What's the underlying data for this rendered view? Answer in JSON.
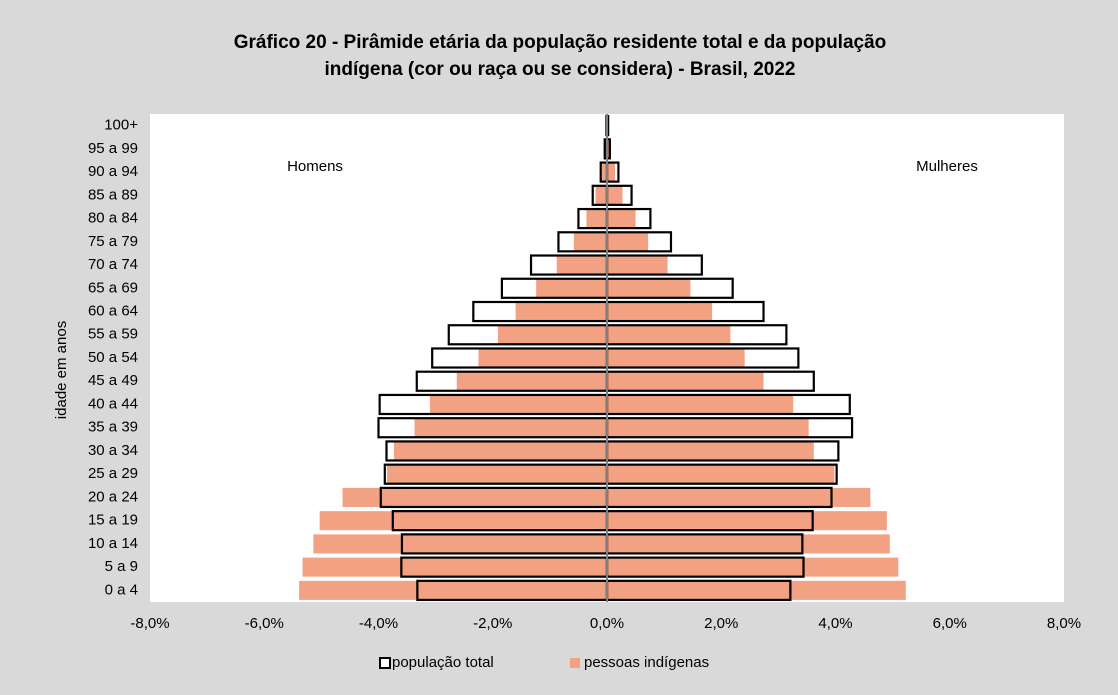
{
  "chart_data": {
    "type": "pyramid",
    "title": "Gráfico 20 - Pirâmide etária da população residente total e da população",
    "subtitle": "indígena (cor ou raça ou se considera) - Brasil, 2022",
    "ylabel": "idade em anos",
    "annotations": [
      "Homens",
      "Mulheres"
    ],
    "categories": [
      "0 a 4",
      "5 a 9",
      "10 a 14",
      "15 a 19",
      "20 a 24",
      "25 a 29",
      "30 a 34",
      "35 a 39",
      "40 a 44",
      "45 a 49",
      "50 a 54",
      "55 a 59",
      "60 a 64",
      "65 a 69",
      "70 a 74",
      "75 a 79",
      "80 a 84",
      "85 a 89",
      "90 a 94",
      "95 a 99",
      "100+"
    ],
    "series": [
      {
        "name": "população total",
        "color": "#000000",
        "fill": "#ffffff",
        "men": [
          -3.32,
          -3.6,
          -3.59,
          -3.75,
          -3.96,
          -3.89,
          -3.86,
          -4.0,
          -3.98,
          -3.33,
          -3.06,
          -2.77,
          -2.34,
          -1.84,
          -1.33,
          -0.85,
          -0.5,
          -0.25,
          -0.11,
          -0.04,
          -0.01
        ],
        "women": [
          3.21,
          3.44,
          3.42,
          3.6,
          3.93,
          4.02,
          4.05,
          4.29,
          4.25,
          3.62,
          3.35,
          3.14,
          2.74,
          2.2,
          1.66,
          1.12,
          0.76,
          0.43,
          0.2,
          0.05,
          0.02
        ]
      },
      {
        "name": "pessoas indígenas",
        "color": "#f2a183",
        "men": [
          -5.39,
          -5.33,
          -5.14,
          -5.03,
          -4.63,
          -3.85,
          -3.73,
          -3.37,
          -3.1,
          -2.63,
          -2.25,
          -1.91,
          -1.6,
          -1.24,
          -0.88,
          -0.58,
          -0.36,
          -0.2,
          -0.09,
          -0.03,
          -0.01
        ],
        "women": [
          5.23,
          5.1,
          4.95,
          4.9,
          4.61,
          3.98,
          3.62,
          3.53,
          3.26,
          2.74,
          2.41,
          2.16,
          1.84,
          1.46,
          1.06,
          0.72,
          0.5,
          0.27,
          0.14,
          0.04,
          0.01
        ]
      }
    ],
    "xlim": [
      -8,
      8
    ],
    "xticks": [
      {
        "value": -8,
        "label": "-8,0%"
      },
      {
        "value": -6,
        "label": "-6,0%"
      },
      {
        "value": -4,
        "label": "-4,0%"
      },
      {
        "value": -2,
        "label": "-2,0%"
      },
      {
        "value": 0,
        "label": "0,0%"
      },
      {
        "value": 2,
        "label": "2,0%"
      },
      {
        "value": 4,
        "label": "4,0%"
      },
      {
        "value": 6,
        "label": "6,0%"
      },
      {
        "value": 8,
        "label": "8,0%"
      }
    ]
  }
}
